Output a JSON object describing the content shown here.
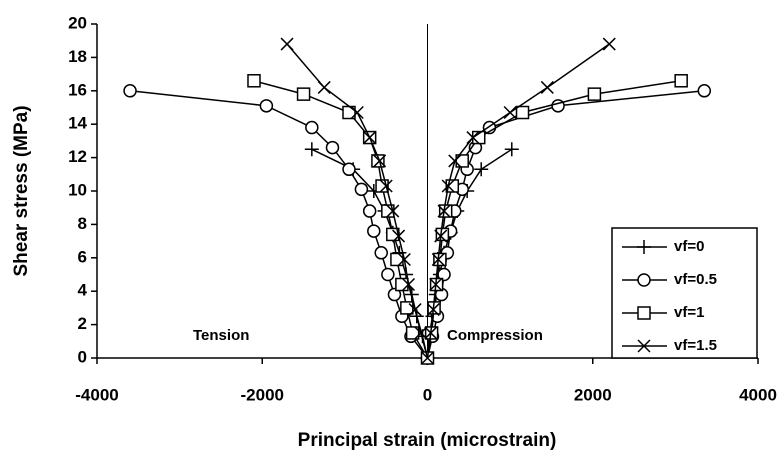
{
  "chart_data": {
    "type": "line",
    "x_label": "Principal strain (microstrain)",
    "y_label": "Shear stress (MPa)",
    "annotations": [
      "Tension",
      "Compression"
    ],
    "xlim": [
      -4000,
      4000
    ],
    "xticks": [
      -4000,
      -2000,
      0,
      2000,
      4000
    ],
    "ylim": [
      0,
      20
    ],
    "yticks": [
      0,
      2,
      4,
      6,
      8,
      10,
      12,
      14,
      16,
      18,
      20
    ],
    "zero_line": true,
    "legend": "lower right",
    "series": [
      {
        "name": "vf=0",
        "color": "#000000",
        "marker": "plus",
        "x": [
          -1400,
          -900,
          -650,
          -520,
          -420,
          -340,
          -260,
          -190,
          -130,
          -60,
          0,
          20,
          60,
          100,
          150,
          200,
          280,
          360,
          480,
          650,
          1020
        ],
        "values": [
          12.5,
          11.3,
          10,
          8.8,
          7.5,
          6.3,
          5,
          3.8,
          2.5,
          1.3,
          0,
          1.3,
          2.5,
          3.8,
          5,
          6.3,
          7.5,
          8.8,
          10,
          11.3,
          12.5
        ]
      },
      {
        "name": "vf=0.5",
        "color": "#000000",
        "marker": "circle",
        "x": [
          -3600,
          -1950,
          -1400,
          -1150,
          -950,
          -800,
          -700,
          -650,
          -560,
          -480,
          -400,
          -310,
          -200,
          0,
          60,
          120,
          170,
          200,
          240,
          280,
          330,
          420,
          480,
          580,
          750,
          1580,
          3350
        ],
        "values": [
          16,
          15.1,
          13.8,
          12.6,
          11.3,
          10.1,
          8.8,
          7.6,
          6.3,
          5,
          3.8,
          2.5,
          1.3,
          0,
          1.3,
          2.5,
          3.8,
          5,
          6.3,
          7.6,
          8.8,
          10.1,
          11.3,
          12.6,
          13.8,
          15.1,
          16
        ]
      },
      {
        "name": "vf=1",
        "color": "#000000",
        "marker": "square",
        "x": [
          -2100,
          -1500,
          -950,
          -700,
          -600,
          -550,
          -480,
          -420,
          -370,
          -310,
          -250,
          -180,
          0,
          50,
          80,
          110,
          150,
          180,
          220,
          300,
          420,
          620,
          1150,
          2020,
          3070
        ],
        "values": [
          16.6,
          15.8,
          14.7,
          13.2,
          11.8,
          10.3,
          8.8,
          7.4,
          5.9,
          4.4,
          3,
          1.5,
          0,
          1.5,
          3,
          4.4,
          5.9,
          7.4,
          8.8,
          10.3,
          11.8,
          13.2,
          14.7,
          15.8,
          16.6
        ]
      },
      {
        "name": "vf=1.5",
        "color": "#000000",
        "marker": "cross",
        "x": [
          -1700,
          -1250,
          -850,
          -700,
          -580,
          -500,
          -420,
          -350,
          -280,
          -230,
          -150,
          -80,
          0,
          40,
          70,
          100,
          130,
          160,
          200,
          250,
          330,
          550,
          1000,
          1450,
          2200
        ],
        "values": [
          18.8,
          16.2,
          14.7,
          13.2,
          11.8,
          10.3,
          8.8,
          7.3,
          5.9,
          4.4,
          2.9,
          1.5,
          0,
          1.5,
          2.9,
          4.4,
          5.9,
          7.3,
          8.8,
          10.3,
          11.8,
          13.2,
          14.7,
          16.2,
          18.8
        ]
      }
    ]
  }
}
